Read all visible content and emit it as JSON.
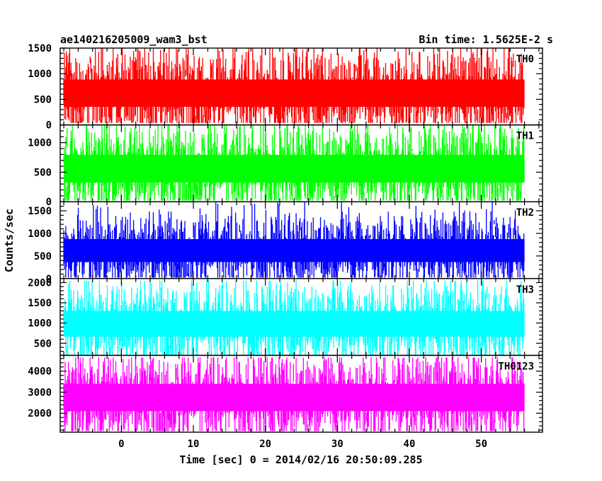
{
  "chart_data": {
    "type": "line",
    "title_left": "ae140216205009_wam3_bst",
    "title_right": "Bin time: 1.5625E-2 s",
    "xlabel": "Time [sec] 0 = 2014/02/16 20:50:09.285",
    "ylabel": "Counts/sec",
    "xlim": [
      -8.5,
      58.5
    ],
    "x_data_range": [
      -8,
      56
    ],
    "xticks": [
      0,
      10,
      20,
      30,
      40,
      50
    ],
    "grid": false,
    "rendering": "dense noise band (light-curve)",
    "panels": [
      {
        "name": "TH0",
        "color": "#ff0000",
        "ylim": [
          0,
          1500
        ],
        "yticks": [
          0,
          500,
          1000,
          1500
        ],
        "mean": 620,
        "band_low": 130,
        "band_high": 1100,
        "peak_min": 40,
        "peak_max": 1500
      },
      {
        "name": "TH1",
        "color": "#00ff00",
        "ylim": [
          0,
          1300
        ],
        "yticks": [
          0,
          500,
          1000
        ],
        "mean": 560,
        "band_low": 150,
        "band_high": 1000,
        "peak_min": 20,
        "peak_max": 1300
      },
      {
        "name": "TH2",
        "color": "#0000ff",
        "ylim": [
          0,
          1700
        ],
        "yticks": [
          0,
          500,
          1000,
          1500
        ],
        "mean": 620,
        "band_low": 180,
        "band_high": 1100,
        "peak_min": 20,
        "peak_max": 1700
      },
      {
        "name": "TH3",
        "color": "#00ffff",
        "ylim": [
          200,
          2100
        ],
        "yticks": [
          500,
          1000,
          1500,
          2000
        ],
        "mean": 980,
        "band_low": 450,
        "band_high": 1600,
        "peak_min": 200,
        "peak_max": 2050
      },
      {
        "name": "TH0123",
        "color": "#ff00ff",
        "ylim": [
          1100,
          4750
        ],
        "yticks": [
          2000,
          3000,
          4000
        ],
        "mean": 2750,
        "band_low": 1600,
        "band_high": 3950,
        "peak_min": 1150,
        "peak_max": 4650
      }
    ]
  }
}
